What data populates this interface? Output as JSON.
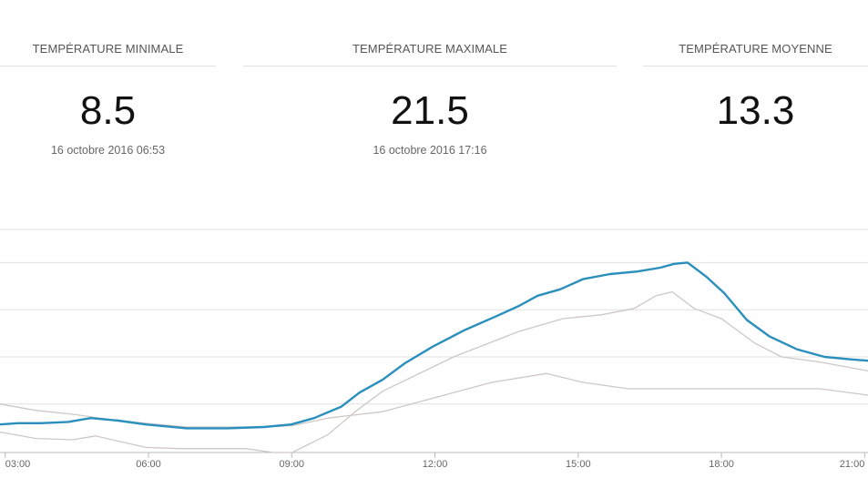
{
  "stats": [
    {
      "title": "TEMPÉRATURE MINIMALE",
      "value": "8.5",
      "date": "16 octobre 2016 06:53"
    },
    {
      "title": "TEMPÉRATURE MAXIMALE",
      "value": "21.5",
      "date": "16 octobre 2016 17:16"
    },
    {
      "title": "TEMPÉRATURE MOYENNE",
      "value": "13.3"
    }
  ],
  "chart_data": {
    "type": "line",
    "title": "",
    "xlabel": "",
    "ylabel": "",
    "x_unit": "hour",
    "xlim": [
      2.89,
      21.07
    ],
    "ylim": [
      6.6,
      24.1
    ],
    "x_ticks": [
      {
        "h": 3,
        "label": "03:00"
      },
      {
        "h": 6,
        "label": "06:00"
      },
      {
        "h": 9,
        "label": "09:00"
      },
      {
        "h": 12,
        "label": "12:00"
      },
      {
        "h": 15,
        "label": "15:00"
      },
      {
        "h": 18,
        "label": "18:00"
      },
      {
        "h": 21,
        "label": "21:00"
      }
    ],
    "y_gridlines": [
      24.1,
      21.5,
      17.8,
      14.1,
      10.4
    ],
    "grid": true,
    "colors": {
      "main": "#2a8fbd",
      "secondary": "#cfc7c7",
      "grid": "#e0e0e0",
      "axis": "#bbbbbb"
    },
    "series": [
      {
        "name": "temperature",
        "color": "#2a8fbd",
        "width": 2.4,
        "points": [
          [
            2.89,
            8.8
          ],
          [
            3.27,
            8.9
          ],
          [
            3.74,
            8.9
          ],
          [
            4.32,
            9.0
          ],
          [
            4.79,
            9.3
          ],
          [
            5.37,
            9.1
          ],
          [
            5.94,
            8.8
          ],
          [
            6.8,
            8.5
          ],
          [
            7.66,
            8.5
          ],
          [
            8.42,
            8.6
          ],
          [
            8.99,
            8.8
          ],
          [
            9.47,
            9.3
          ],
          [
            10.04,
            10.2
          ],
          [
            10.42,
            11.3
          ],
          [
            10.9,
            12.3
          ],
          [
            11.37,
            13.6
          ],
          [
            11.95,
            14.9
          ],
          [
            12.62,
            16.2
          ],
          [
            13.29,
            17.3
          ],
          [
            13.76,
            18.1
          ],
          [
            14.15,
            18.9
          ],
          [
            14.62,
            19.4
          ],
          [
            15.1,
            20.2
          ],
          [
            15.67,
            20.6
          ],
          [
            16.24,
            20.8
          ],
          [
            16.72,
            21.1
          ],
          [
            17.01,
            21.4
          ],
          [
            17.29,
            21.5
          ],
          [
            17.68,
            20.4
          ],
          [
            18.06,
            19.1
          ],
          [
            18.53,
            17.0
          ],
          [
            19.01,
            15.7
          ],
          [
            19.58,
            14.7
          ],
          [
            20.16,
            14.1
          ],
          [
            20.73,
            13.9
          ],
          [
            21.07,
            13.8
          ]
        ]
      },
      {
        "name": "series-2",
        "color": "#cfc7c7",
        "width": 1.3,
        "points": [
          [
            2.89,
            8.2
          ],
          [
            3.65,
            7.7
          ],
          [
            4.41,
            7.6
          ],
          [
            4.89,
            7.9
          ],
          [
            5.94,
            7.0
          ],
          [
            6.7,
            6.9
          ],
          [
            8.04,
            6.9
          ],
          [
            8.61,
            6.6
          ],
          [
            9.01,
            6.6
          ],
          [
            9.76,
            8.0
          ],
          [
            10.33,
            9.8
          ],
          [
            10.9,
            11.4
          ],
          [
            12.39,
            14.1
          ],
          [
            13.76,
            16.1
          ],
          [
            14.68,
            17.1
          ],
          [
            15.48,
            17.4
          ],
          [
            16.17,
            17.9
          ],
          [
            16.63,
            18.9
          ],
          [
            16.97,
            19.2
          ],
          [
            17.43,
            17.9
          ],
          [
            18.0,
            17.1
          ],
          [
            18.69,
            15.2
          ],
          [
            19.26,
            14.1
          ],
          [
            20.06,
            13.7
          ],
          [
            21.07,
            13.0
          ]
        ]
      },
      {
        "name": "series-3",
        "color": "#cfc7c7",
        "width": 1.3,
        "points": [
          [
            2.89,
            10.4
          ],
          [
            3.65,
            9.9
          ],
          [
            4.41,
            9.6
          ],
          [
            5.37,
            9.1
          ],
          [
            6.8,
            8.6
          ],
          [
            8.42,
            8.6
          ],
          [
            9.01,
            8.7
          ],
          [
            9.76,
            9.3
          ],
          [
            10.9,
            9.8
          ],
          [
            12.39,
            11.3
          ],
          [
            13.19,
            12.1
          ],
          [
            14.34,
            12.8
          ],
          [
            15.1,
            12.1
          ],
          [
            16.05,
            11.6
          ],
          [
            20.06,
            11.6
          ],
          [
            21.07,
            11.1
          ]
        ]
      }
    ]
  }
}
